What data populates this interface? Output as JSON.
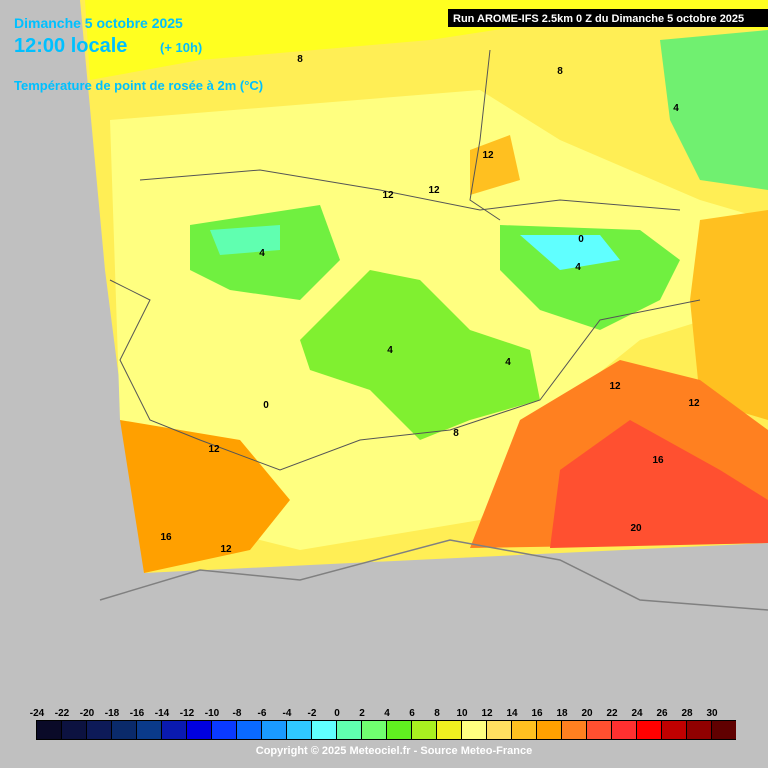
{
  "header": {
    "date": "Dimanche 5 octobre 2025",
    "time": "12:00 locale",
    "offset": "(+ 10h)",
    "parameter": "Température de point de rosée à 2m (°C)",
    "run": "Run AROME-IFS 2.5km 0 Z du Dimanche 5 octobre 2025"
  },
  "map": {
    "contour_labels": [
      8,
      8,
      4,
      12,
      12,
      12,
      4,
      0,
      4,
      4,
      4,
      12,
      0,
      12,
      8,
      12,
      16,
      16,
      20,
      12
    ]
  },
  "legend": {
    "ticks": [
      -24,
      -22,
      -20,
      -18,
      -16,
      -14,
      -12,
      -10,
      -8,
      -6,
      -4,
      -2,
      0,
      2,
      4,
      6,
      8,
      10,
      12,
      14,
      16,
      18,
      20,
      22,
      24,
      26,
      28,
      30
    ],
    "colors": [
      "#0a0a28",
      "#0c1240",
      "#0d1a58",
      "#0a2a6a",
      "#0a3a8a",
      "#0a1ab0",
      "#0000e0",
      "#0a3aff",
      "#0a6aff",
      "#1a9aff",
      "#30c8ff",
      "#60ffff",
      "#60ffb0",
      "#70ff70",
      "#60f020",
      "#a8f020",
      "#f0f020",
      "#ffff80",
      "#ffe060",
      "#ffc020",
      "#ffa000",
      "#ff8020",
      "#ff5030",
      "#ff3030",
      "#ff0000",
      "#c00000",
      "#900000",
      "#600000"
    ]
  },
  "footer": {
    "copyright": "Copyright © 2025 Meteociel.fr - Source Meteo-France"
  }
}
